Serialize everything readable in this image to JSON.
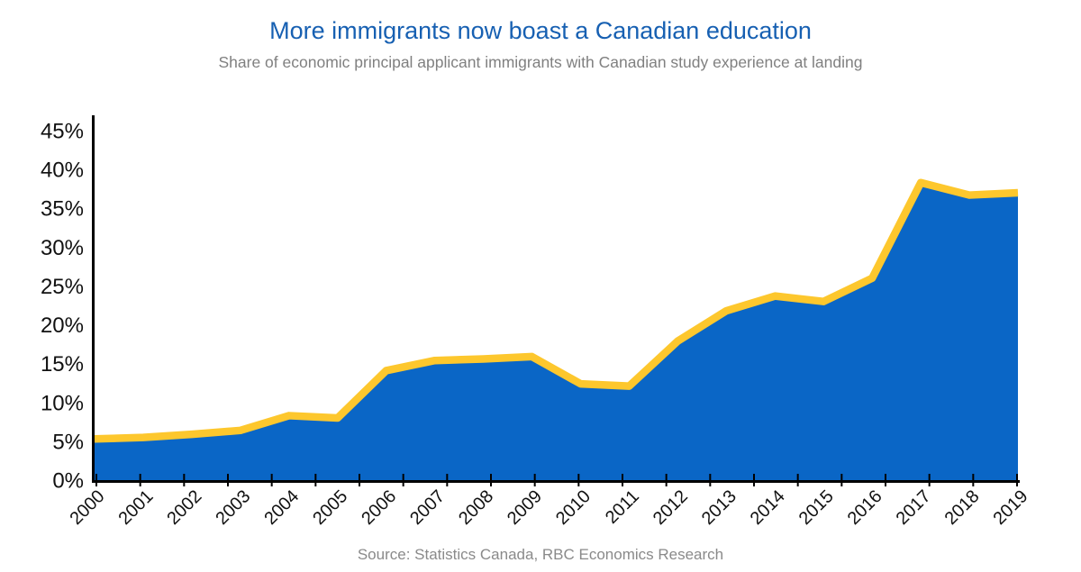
{
  "chart_data": {
    "type": "area",
    "title": "More immigrants now boast a Canadian education",
    "subtitle": "Share of economic principal applicant immigrants with Canadian study experience at landing",
    "source": "Source: Statistics Canada, RBC Economics Research",
    "categories": [
      "2000",
      "2001",
      "2002",
      "2003",
      "2004",
      "2005",
      "2006",
      "2007",
      "2008",
      "2009",
      "2010",
      "2011",
      "2012",
      "2013",
      "2014",
      "2015",
      "2016",
      "2017",
      "2018",
      "2019"
    ],
    "values": [
      5.3,
      5.5,
      5.9,
      6.4,
      8.3,
      8.0,
      14.1,
      15.4,
      15.6,
      15.9,
      12.4,
      12.1,
      17.9,
      21.8,
      23.7,
      23.0,
      26.0,
      38.3,
      36.7,
      37.0
    ],
    "unit": "%",
    "xlabel": "",
    "ylabel": "",
    "ylim": [
      0,
      45
    ],
    "ytick_step": 5,
    "ytick_labels": [
      "0%",
      "5%",
      "10%",
      "15%",
      "20%",
      "25%",
      "30%",
      "35%",
      "40%",
      "45%"
    ],
    "grid": false,
    "legend": false,
    "x_tick_count": 22
  },
  "colors": {
    "area_fill": "#0A66C6",
    "line_stroke": "#FDC72D",
    "axis": "#000000",
    "tick_label": "#111111",
    "title": "#1760B2",
    "subtitle": "#808080",
    "source": "#8A8A8A"
  }
}
